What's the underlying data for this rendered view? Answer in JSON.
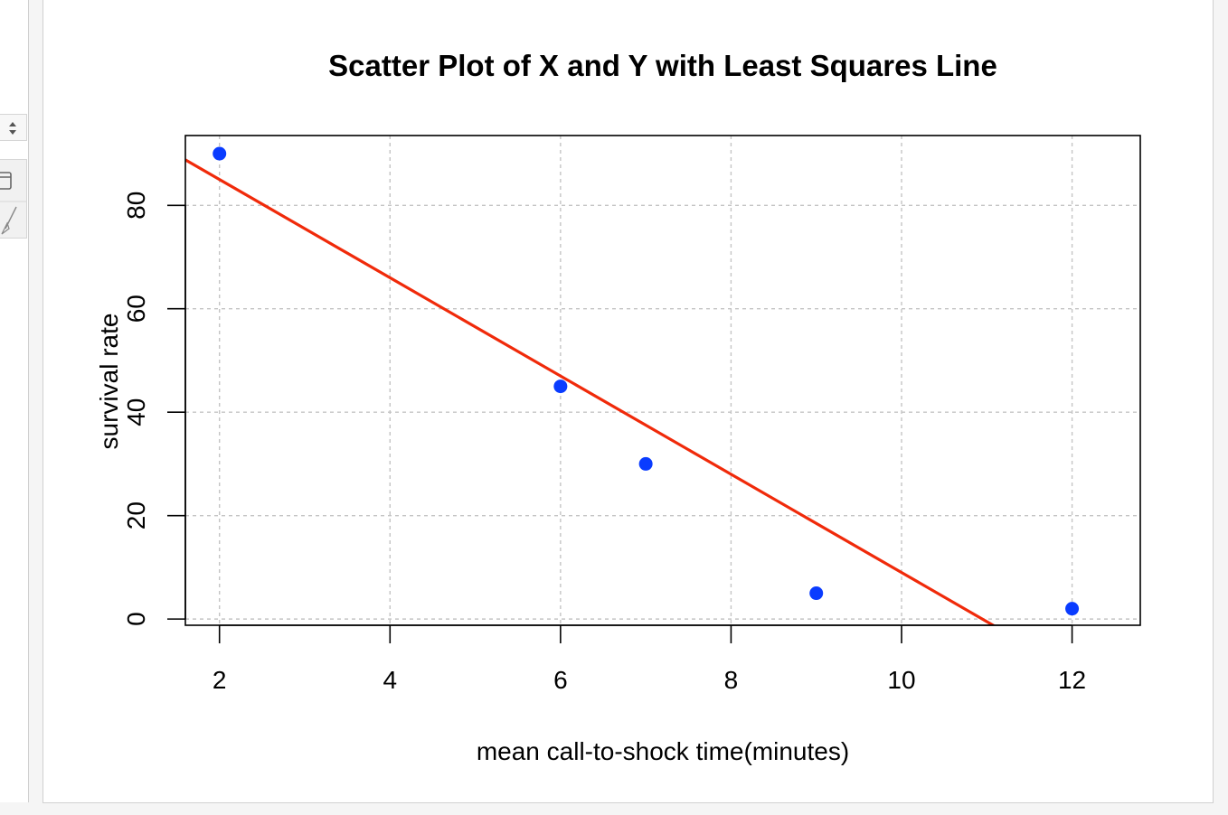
{
  "left_toolbar": {
    "stepper_icon": "up-down-stepper-icon",
    "tools": [
      "window-icon",
      "brush-icon"
    ]
  },
  "chart_data": {
    "type": "scatter",
    "title": "Scatter Plot of X and Y with Least Squares Line",
    "xlabel": "mean call-to-shock time(minutes)",
    "ylabel": "survival rate",
    "xlim": [
      1.6,
      12.8
    ],
    "ylim": [
      -1.2,
      93.5
    ],
    "xticks": [
      2,
      4,
      6,
      8,
      10,
      12
    ],
    "yticks": [
      0,
      20,
      40,
      60,
      80
    ],
    "grid": true,
    "points": [
      {
        "x": 2,
        "y": 90
      },
      {
        "x": 6,
        "y": 45
      },
      {
        "x": 7,
        "y": 30
      },
      {
        "x": 9,
        "y": 5
      },
      {
        "x": 12,
        "y": 2
      }
    ],
    "point_color": "#0a3cff",
    "fit_line": {
      "name": "Least Squares Line",
      "intercept": 104.0,
      "slope": -9.5,
      "color": "#f02a0a"
    }
  }
}
